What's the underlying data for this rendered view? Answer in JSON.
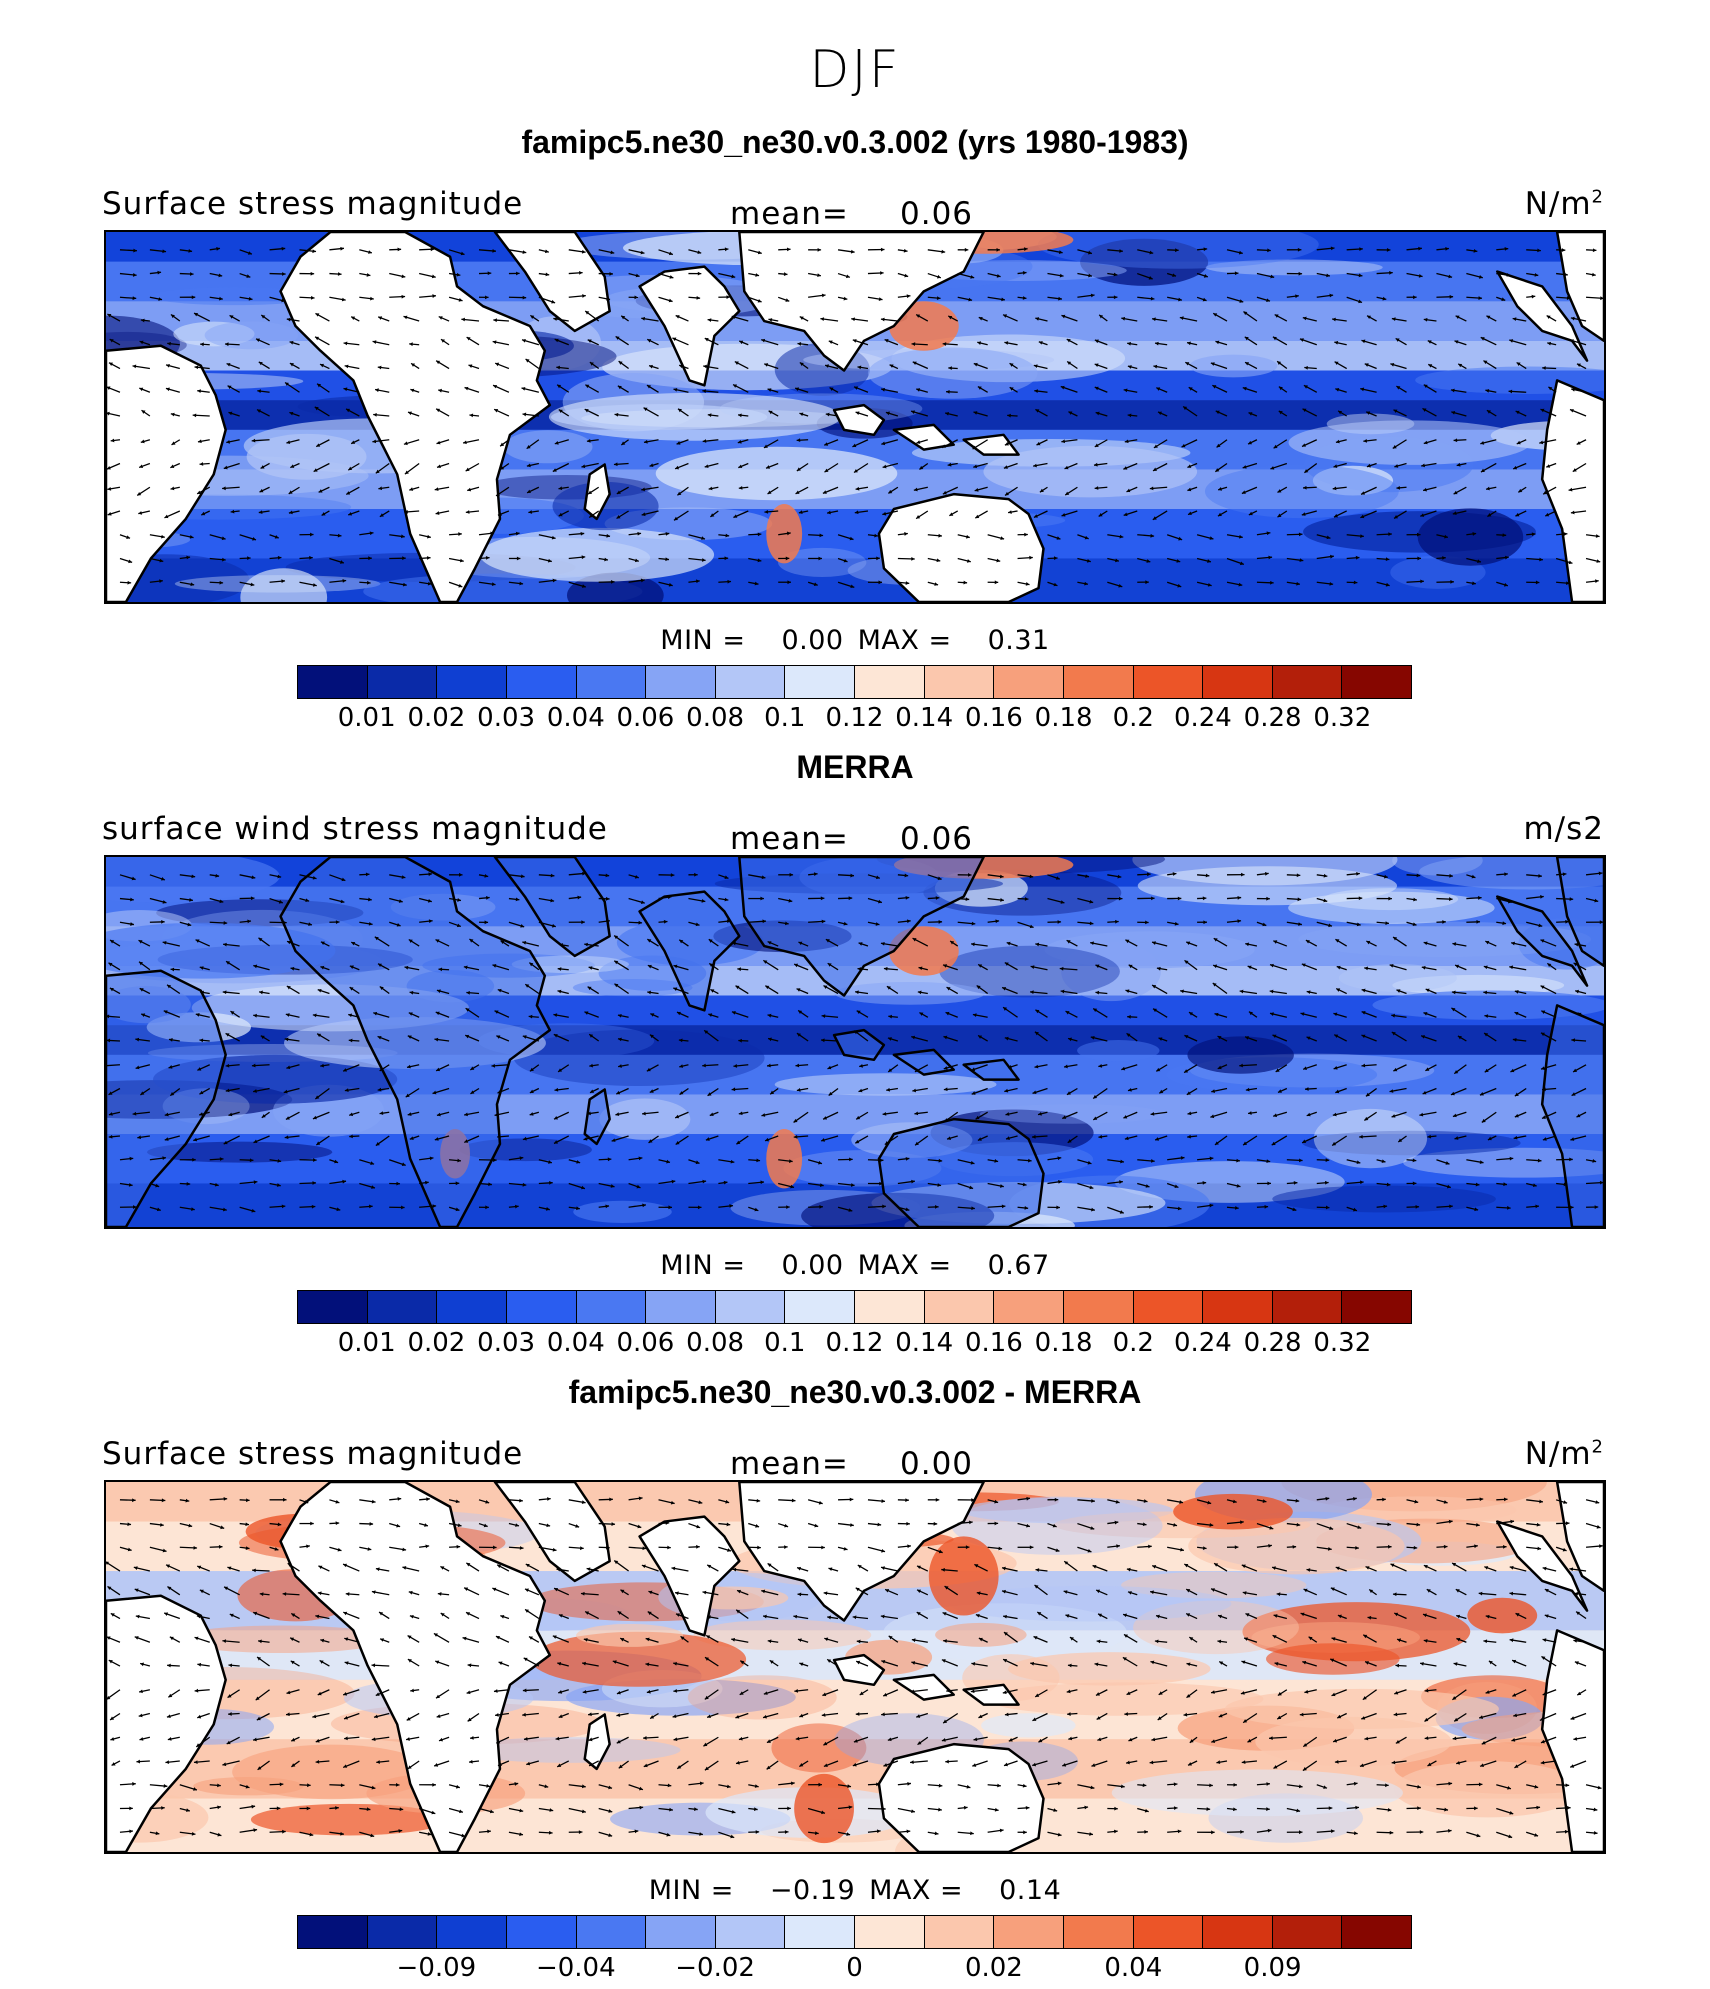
{
  "figure": {
    "title": "DJF"
  },
  "colors": {
    "seq": [
      "#02107a",
      "#0a2aa8",
      "#0f3fd2",
      "#2a5df0",
      "#4a78f2",
      "#86a4f5",
      "#b3c6f7",
      "#dce8fb",
      "#fde6d6",
      "#fbc7ad",
      "#f7a07c",
      "#f27a4d",
      "#ec5528",
      "#d73612",
      "#b31f0a",
      "#860600"
    ],
    "land": "#ffffff",
    "coast": "#000000"
  },
  "panels": [
    {
      "id": "model",
      "title": "famipc5.ne30_ne30.v0.3.002 (yrs 1980-1983)",
      "left_label": "Surface stress magnitude",
      "mean_label": "mean=",
      "mean_value": "0.06",
      "units": "N/m",
      "units_sup": "2",
      "min_label": "MIN =",
      "min_value": "0.00",
      "max_label": "MAX =",
      "max_value": "0.31",
      "colorbar_ticks": [
        "0.01",
        "0.02",
        "0.03",
        "0.04",
        "0.06",
        "0.08",
        "0.1",
        "0.12",
        "0.14",
        "0.16",
        "0.18",
        "0.2",
        "0.24",
        "0.28",
        "0.32"
      ],
      "palette": "sequential",
      "land_filled": true
    },
    {
      "id": "obs",
      "title": "MERRA",
      "left_label": "surface wind stress magnitude",
      "mean_label": "mean=",
      "mean_value": "0.06",
      "units": "m/s2",
      "units_sup": "",
      "min_label": "MIN =",
      "min_value": "0.00",
      "max_label": "MAX =",
      "max_value": "0.67",
      "colorbar_ticks": [
        "0.01",
        "0.02",
        "0.03",
        "0.04",
        "0.06",
        "0.08",
        "0.1",
        "0.12",
        "0.14",
        "0.16",
        "0.18",
        "0.2",
        "0.24",
        "0.28",
        "0.32"
      ],
      "palette": "sequential",
      "land_filled": false
    },
    {
      "id": "diff",
      "title": "famipc5.ne30_ne30.v0.3.002 - MERRA",
      "left_label": "Surface stress magnitude",
      "mean_label": "mean=",
      "mean_value": "0.00",
      "units": "N/m",
      "units_sup": "2",
      "min_label": "MIN =",
      "min_value": "−0.19",
      "max_label": "MAX =",
      "max_value": "0.14",
      "colorbar_ticks": [
        "−0.09",
        "−0.04",
        "−0.02",
        "0",
        "0.02",
        "0.04",
        "0.09"
      ],
      "palette": "diverging",
      "land_filled": true
    }
  ]
}
